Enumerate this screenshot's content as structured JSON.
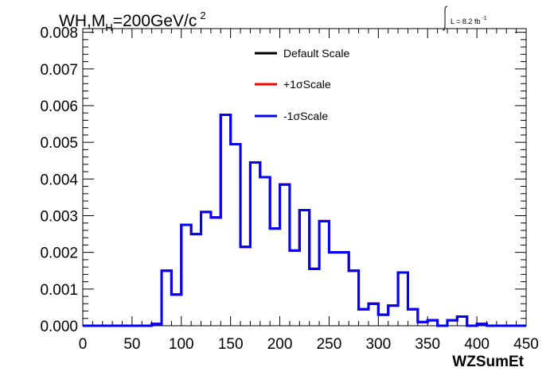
{
  "chart_data": {
    "type": "line",
    "title_parts": {
      "lead": "WH,M",
      "sub": "H",
      "rest": "=200GeV/c",
      "sup": "2"
    },
    "lumi_label": {
      "text": "L = 8.2 fb",
      "sup": "-1"
    },
    "xlabel": "WZSumEt",
    "ylabel": "",
    "xlim": [
      0,
      450
    ],
    "ylim": [
      0,
      0.0081
    ],
    "xticks": [
      0,
      50,
      100,
      150,
      200,
      250,
      300,
      350,
      400,
      450
    ],
    "yticks": [
      "0.000",
      "0.001",
      "0.002",
      "0.003",
      "0.004",
      "0.005",
      "0.006",
      "0.007",
      "0.008"
    ],
    "bin_edges": [
      0,
      10,
      20,
      30,
      40,
      50,
      60,
      70,
      80,
      90,
      100,
      110,
      120,
      130,
      140,
      150,
      160,
      170,
      180,
      190,
      200,
      210,
      220,
      230,
      240,
      250,
      260,
      270,
      280,
      290,
      300,
      310,
      320,
      330,
      340,
      350,
      360,
      370,
      380,
      390,
      400,
      410,
      420,
      430,
      440,
      450
    ],
    "series": [
      {
        "name": "Default Scale",
        "color": "#000000",
        "values": [
          0,
          0,
          0,
          0,
          0,
          0,
          0,
          5e-05,
          0.0015,
          0.00085,
          0.00275,
          0.0025,
          0.0031,
          0.00295,
          0.00575,
          0.00495,
          0.00215,
          0.00445,
          0.00405,
          0.00265,
          0.00385,
          0.00205,
          0.00315,
          0.00155,
          0.00285,
          0.002,
          0.002,
          0.0015,
          0.00045,
          0.0006,
          0.0003,
          0.00055,
          0.00145,
          0.00045,
          0.0001,
          0.00015,
          0,
          0.00015,
          0.00025,
          0,
          5e-05,
          0,
          0,
          0,
          0
        ]
      },
      {
        "name": "+1σScale",
        "color": "#ff0000",
        "values": [
          0,
          0,
          0,
          0,
          0,
          0,
          0,
          5e-05,
          0.0015,
          0.00085,
          0.00275,
          0.0025,
          0.0031,
          0.00295,
          0.00575,
          0.00495,
          0.00215,
          0.00445,
          0.00405,
          0.00265,
          0.00385,
          0.00205,
          0.00315,
          0.00155,
          0.00285,
          0.002,
          0.002,
          0.0015,
          0.00045,
          0.0006,
          0.0003,
          0.00055,
          0.00145,
          0.00045,
          0.0001,
          0.00015,
          0,
          0.00015,
          0.00025,
          0,
          5e-05,
          0,
          0,
          0,
          0
        ]
      },
      {
        "name": "-1σScale",
        "color": "#0000ff",
        "values": [
          0,
          0,
          0,
          0,
          0,
          0,
          0,
          5e-05,
          0.0015,
          0.00085,
          0.00275,
          0.0025,
          0.0031,
          0.00295,
          0.00575,
          0.00495,
          0.00215,
          0.00445,
          0.00405,
          0.00265,
          0.00385,
          0.00205,
          0.00315,
          0.00155,
          0.00285,
          0.002,
          0.002,
          0.0015,
          0.00045,
          0.0006,
          0.0003,
          0.00055,
          0.00145,
          0.00045,
          0.0001,
          0.00015,
          0,
          0.00015,
          0.00025,
          0,
          5e-05,
          0,
          0,
          0,
          0
        ]
      }
    ],
    "legend_position": "top-center",
    "grid": false
  }
}
